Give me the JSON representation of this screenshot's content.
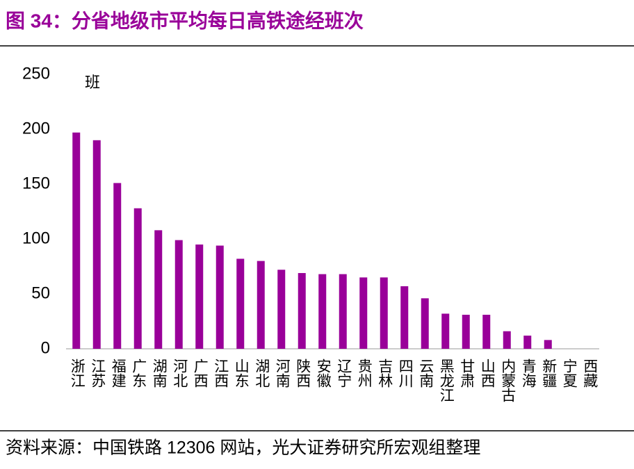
{
  "chart_data": {
    "type": "bar",
    "title": "图 34：分省地级市平均每日高铁途经班次",
    "unit": "班",
    "source": "资料来源：中国铁路 12306 网站，光大证券研究所宏观组整理",
    "categories": [
      "浙江",
      "江苏",
      "福建",
      "广东",
      "湖南",
      "河北",
      "广西",
      "江西",
      "山东",
      "湖北",
      "河南",
      "陕西",
      "安徽",
      "辽宁",
      "贵州",
      "吉林",
      "四川",
      "云南",
      "黑龙江",
      "甘肃",
      "山西",
      "内蒙古",
      "青海",
      "新疆",
      "宁夏",
      "西藏"
    ],
    "values": [
      197,
      190,
      151,
      128,
      108,
      99,
      95,
      94,
      82,
      80,
      72,
      69,
      68,
      68,
      65,
      65,
      57,
      46,
      32,
      31,
      31,
      16,
      12,
      8,
      0,
      0
    ],
    "color": "#990099",
    "ylim": [
      0,
      250
    ],
    "yticks": [
      0,
      50,
      100,
      150,
      200,
      250
    ],
    "grid": false
  }
}
